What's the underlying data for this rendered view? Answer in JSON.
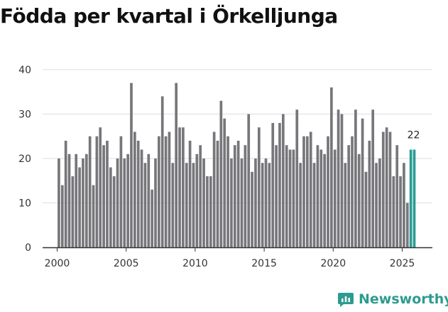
{
  "brand": {
    "name": "Newsworthy",
    "icon": "newsworthy-logo-icon"
  },
  "colors": {
    "bar": "#77767a",
    "highlight": "#2b9c94",
    "grid": "#dedede",
    "axis": "#333333"
  },
  "chart_data": {
    "type": "bar",
    "title": "Födda per kvartal i Örkelljunga",
    "xlabel": "",
    "ylabel": "",
    "ylim": [
      0,
      40
    ],
    "yticks": [
      0,
      10,
      20,
      30,
      40
    ],
    "xticks": [
      2000,
      2005,
      2010,
      2015,
      2020,
      2025
    ],
    "x_start": 2000.125,
    "x_step": 0.25,
    "values": [
      20,
      14,
      24,
      21,
      16,
      21,
      18,
      20,
      21,
      25,
      14,
      25,
      27,
      23,
      24,
      18,
      16,
      20,
      25,
      20,
      21,
      37,
      26,
      24,
      22,
      19,
      21,
      13,
      20,
      25,
      34,
      25,
      26,
      19,
      37,
      27,
      27,
      19,
      24,
      19,
      21,
      23,
      20,
      16,
      16,
      26,
      24,
      33,
      29,
      25,
      20,
      23,
      24,
      20,
      23,
      30,
      17,
      20,
      27,
      19,
      20,
      19,
      28,
      23,
      28,
      30,
      23,
      22,
      22,
      31,
      19,
      25,
      25,
      26,
      19,
      23,
      22,
      21,
      25,
      36,
      22,
      31,
      30,
      19,
      23,
      25,
      31,
      21,
      29,
      17,
      24,
      31,
      19,
      20,
      26,
      27,
      26,
      16,
      23,
      16,
      19,
      10,
      22,
      22
    ],
    "highlight_last": 2,
    "data_labels": [
      {
        "index": 103,
        "text": "22"
      }
    ]
  }
}
